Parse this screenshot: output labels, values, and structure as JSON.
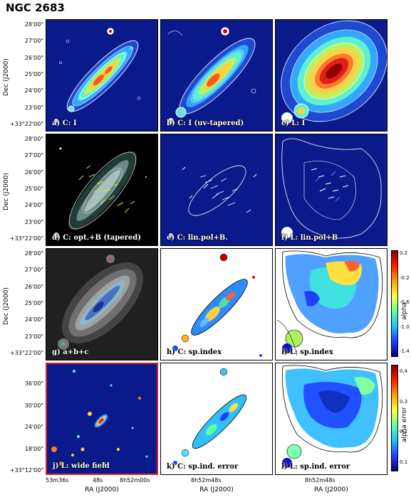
{
  "title": "NGC 2683",
  "yaxis_label": "Dec (J2000)",
  "xaxis_label": "RA (J2000)",
  "yticks_top": [
    "28'00\"",
    "27'00\"",
    "26'00\"",
    "25'00\"",
    "24'00\"",
    "23'00\"",
    "+33°22'00\""
  ],
  "yticks_wide": [
    "36'00\"",
    "30'00\"",
    "24'00\"",
    "18'00\"",
    "+33°12'00\""
  ],
  "xticks_col1": [
    "53m36s",
    "48s",
    "8h52m00s"
  ],
  "xticks_col2": [
    "8h52m48s"
  ],
  "xticks_col3": [
    "8h52m48s"
  ],
  "panels": {
    "a": "a) C: I",
    "b": "b) C: I (uv-tapered)",
    "c": "c) L: I",
    "d": "d) C: opt.+B (tapered)",
    "e": "e) C: lin.pol+B.",
    "f": "f) L: lin.pol+B",
    "g": "g)  a+b+c",
    "h": "h) C: sp.index",
    "i": "i) L: sp.index",
    "j": "j) L: wide field",
    "k": "k) C: sp.ind. error",
    "l": "l) L: sp.ind. error"
  },
  "colorbar_alpha": {
    "label": "alpha",
    "ticks": [
      "0.2",
      "-0.2",
      "-0.6",
      "-1.0",
      "-1.4"
    ]
  },
  "colorbar_error": {
    "label": "alpha error",
    "ticks": [
      "0.4",
      "0.3",
      "0.2",
      "0.1"
    ]
  }
}
